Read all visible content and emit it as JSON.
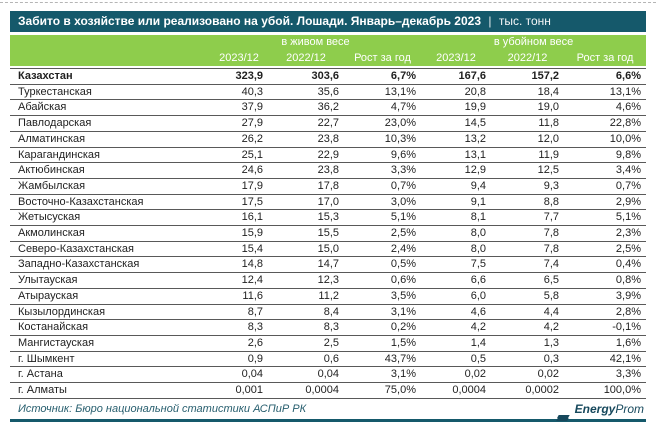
{
  "title_bar": {
    "text": "Забито в хозяйстве или реализовано на убой. Лошади. Январь–декабрь 2023",
    "separator": "|",
    "unit": "тыс. тонн"
  },
  "chart_data": {
    "type": "table",
    "title": "Забито в хозяйстве или реализовано на убой. Лошади. Январь–декабрь 2023",
    "unit": "тыс. тонн",
    "column_groups": [
      "в живом весе",
      "в убойном весе"
    ],
    "columns": [
      "2023/12",
      "2022/12",
      "Рост за год",
      "2023/12",
      "2022/12",
      "Рост за год"
    ],
    "rows": [
      {
        "region": "Казахстан",
        "bold": true,
        "values": [
          "323,9",
          "303,6",
          "6,7%",
          "167,6",
          "157,2",
          "6,6%"
        ]
      },
      {
        "region": "Туркестанская",
        "values": [
          "40,3",
          "35,6",
          "13,1%",
          "20,8",
          "18,4",
          "13,1%"
        ]
      },
      {
        "region": "Абайская",
        "values": [
          "37,9",
          "36,2",
          "4,7%",
          "19,9",
          "19,0",
          "4,6%"
        ]
      },
      {
        "region": "Павлодарская",
        "values": [
          "27,9",
          "22,7",
          "23,0%",
          "14,5",
          "11,8",
          "22,8%"
        ]
      },
      {
        "region": "Алматинская",
        "values": [
          "26,2",
          "23,8",
          "10,3%",
          "13,2",
          "12,0",
          "10,0%"
        ]
      },
      {
        "region": "Карагандинская",
        "values": [
          "25,1",
          "22,9",
          "9,6%",
          "13,1",
          "11,9",
          "9,8%"
        ]
      },
      {
        "region": "Актюбинская",
        "values": [
          "24,6",
          "23,8",
          "3,3%",
          "12,9",
          "12,5",
          "3,4%"
        ]
      },
      {
        "region": "Жамбылская",
        "values": [
          "17,9",
          "17,8",
          "0,7%",
          "9,4",
          "9,3",
          "0,7%"
        ]
      },
      {
        "region": "Восточно-Казахстанская",
        "values": [
          "17,5",
          "17,0",
          "3,0%",
          "9,1",
          "8,8",
          "2,9%"
        ]
      },
      {
        "region": "Жетысуская",
        "values": [
          "16,1",
          "15,3",
          "5,1%",
          "8,1",
          "7,7",
          "5,1%"
        ]
      },
      {
        "region": "Акмолинская",
        "values": [
          "15,9",
          "15,5",
          "2,5%",
          "8,0",
          "7,8",
          "2,3%"
        ]
      },
      {
        "region": "Северо-Казахстанская",
        "values": [
          "15,4",
          "15,0",
          "2,4%",
          "8,0",
          "7,8",
          "2,5%"
        ]
      },
      {
        "region": "Западно-Казахстанская",
        "values": [
          "14,8",
          "14,7",
          "0,5%",
          "7,5",
          "7,4",
          "0,4%"
        ]
      },
      {
        "region": "Улытауская",
        "values": [
          "12,4",
          "12,3",
          "0,6%",
          "6,6",
          "6,5",
          "0,8%"
        ]
      },
      {
        "region": "Атырауская",
        "values": [
          "11,6",
          "11,2",
          "3,5%",
          "6,0",
          "5,8",
          "3,9%"
        ]
      },
      {
        "region": "Кызылординская",
        "values": [
          "8,7",
          "8,4",
          "3,1%",
          "4,6",
          "4,4",
          "2,8%"
        ]
      },
      {
        "region": "Костанайская",
        "values": [
          "8,3",
          "8,3",
          "0,2%",
          "4,2",
          "4,2",
          "-0,1%"
        ]
      },
      {
        "region": "Мангистауская",
        "values": [
          "2,6",
          "2,5",
          "1,5%",
          "1,4",
          "1,3",
          "1,6%"
        ]
      },
      {
        "region": "г. Шымкент",
        "values": [
          "0,9",
          "0,6",
          "43,7%",
          "0,5",
          "0,3",
          "42,1%"
        ]
      },
      {
        "region": "г. Астана",
        "values": [
          "0,04",
          "0,04",
          "3,1%",
          "0,02",
          "0,02",
          "3,3%"
        ]
      },
      {
        "region": "г. Алматы",
        "values": [
          "0,001",
          "0,0004",
          "75,0%",
          "0,0004",
          "0,0002",
          "100,0%"
        ]
      }
    ]
  },
  "footer": {
    "source": "Источник: Бюро национальной статистики АСПиР РК",
    "logo_bold": "Energy",
    "logo_regular": "Prom"
  },
  "colors": {
    "title_bar_bg": "#15596b",
    "header_bg": "#8ecd4c",
    "header_text": "#ffffff",
    "row_border": "#595959",
    "body_text": "#1f1f1f",
    "footer_text": "#275e6e",
    "logo_color": "#16485c",
    "bottom_line": "#15596b"
  }
}
